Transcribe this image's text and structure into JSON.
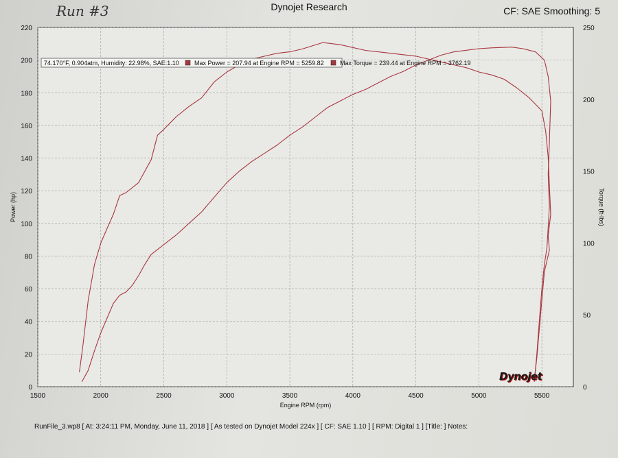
{
  "header": {
    "title": "Dynojet Research",
    "cf_label": "CF: SAE Smoothing: 5",
    "handwritten_note": "Run #3"
  },
  "footer": {
    "text": "RunFile_3.wp8 [ At: 3:24:11 PM, Monday, June 11, 2018 ] [ As tested on Dynojet Model 224x ] [ CF: SAE 1.10 ] [ RPM: Digital 1 ] [Title: ]  Notes:"
  },
  "brand": {
    "text": "Dynojet"
  },
  "chart_data": {
    "type": "line",
    "xlabel": "Engine RPM (rpm)",
    "ylabel": "Power (hp)",
    "y2label": "Torque (ft-lbs)",
    "xlim": [
      1500,
      5750
    ],
    "ylim": [
      0,
      220
    ],
    "y2lim": [
      0,
      250
    ],
    "x_ticks": [
      1500,
      2000,
      2500,
      3000,
      3500,
      4000,
      4500,
      5000,
      5500
    ],
    "y_ticks": [
      0,
      20,
      40,
      60,
      80,
      100,
      120,
      140,
      160,
      180,
      200,
      220
    ],
    "y2_ticks": [
      0,
      50,
      100,
      150,
      200,
      250
    ],
    "grid": true,
    "line_color": "#a8373f",
    "conditions": "74.170°F, 0.904atm, Humidity: 22.98%, SAE:1.10",
    "legend": [
      {
        "label": "Max Power = 207.94 at Engine RPM = 5259.82"
      },
      {
        "label": "Max Torque = 239.44 at Engine RPM = 3762.19"
      }
    ],
    "series": [
      {
        "axis": "left",
        "points": [
          [
            1850,
            3
          ],
          [
            1900,
            10
          ],
          [
            1950,
            22
          ],
          [
            2000,
            33
          ],
          [
            2050,
            42
          ],
          [
            2100,
            51
          ],
          [
            2150,
            56
          ],
          [
            2200,
            58
          ],
          [
            2250,
            62
          ],
          [
            2300,
            68
          ],
          [
            2350,
            75
          ],
          [
            2400,
            81
          ],
          [
            2450,
            84
          ],
          [
            2500,
            87
          ],
          [
            2600,
            93
          ],
          [
            2700,
            100
          ],
          [
            2800,
            107
          ],
          [
            2900,
            116
          ],
          [
            3000,
            125
          ],
          [
            3100,
            132
          ],
          [
            3200,
            138
          ],
          [
            3300,
            143
          ],
          [
            3400,
            148
          ],
          [
            3500,
            154
          ],
          [
            3600,
            159
          ],
          [
            3700,
            165
          ],
          [
            3800,
            171
          ],
          [
            3900,
            175
          ],
          [
            4000,
            179
          ],
          [
            4100,
            182
          ],
          [
            4200,
            186
          ],
          [
            4300,
            190
          ],
          [
            4400,
            193
          ],
          [
            4500,
            197
          ],
          [
            4600,
            200
          ],
          [
            4700,
            203
          ],
          [
            4800,
            205
          ],
          [
            4900,
            206
          ],
          [
            5000,
            207
          ],
          [
            5100,
            207.5
          ],
          [
            5260,
            207.94
          ],
          [
            5350,
            207
          ],
          [
            5450,
            205
          ],
          [
            5520,
            200
          ],
          [
            5550,
            190
          ],
          [
            5570,
            175
          ],
          [
            5560,
            150
          ],
          [
            5550,
            130
          ],
          [
            5560,
            110
          ],
          [
            5540,
            85
          ],
          [
            5520,
            75
          ],
          [
            5500,
            60
          ],
          [
            5480,
            40
          ],
          [
            5460,
            20
          ],
          [
            5440,
            3
          ]
        ]
      },
      {
        "axis": "right",
        "points": [
          [
            1830,
            10
          ],
          [
            1860,
            30
          ],
          [
            1900,
            60
          ],
          [
            1950,
            85
          ],
          [
            2000,
            100
          ],
          [
            2050,
            110
          ],
          [
            2100,
            120
          ],
          [
            2150,
            133
          ],
          [
            2200,
            135
          ],
          [
            2300,
            142
          ],
          [
            2400,
            158
          ],
          [
            2450,
            175
          ],
          [
            2500,
            179
          ],
          [
            2600,
            188
          ],
          [
            2700,
            195
          ],
          [
            2800,
            201
          ],
          [
            2900,
            212
          ],
          [
            3000,
            219
          ],
          [
            3100,
            224
          ],
          [
            3200,
            228
          ],
          [
            3300,
            230
          ],
          [
            3400,
            232
          ],
          [
            3500,
            233
          ],
          [
            3600,
            235
          ],
          [
            3762,
            239.44
          ],
          [
            3900,
            238
          ],
          [
            4000,
            236
          ],
          [
            4100,
            234
          ],
          [
            4200,
            233
          ],
          [
            4300,
            232
          ],
          [
            4400,
            231
          ],
          [
            4500,
            230
          ],
          [
            4600,
            228
          ],
          [
            4700,
            226
          ],
          [
            4800,
            224
          ],
          [
            4900,
            222
          ],
          [
            5000,
            219
          ],
          [
            5100,
            217
          ],
          [
            5200,
            214
          ],
          [
            5300,
            208
          ],
          [
            5400,
            201
          ],
          [
            5500,
            192
          ],
          [
            5530,
            178
          ],
          [
            5550,
            160
          ],
          [
            5560,
            140
          ],
          [
            5570,
            120
          ],
          [
            5550,
            105
          ],
          [
            5560,
            95
          ],
          [
            5520,
            80
          ],
          [
            5500,
            60
          ],
          [
            5480,
            40
          ],
          [
            5460,
            20
          ],
          [
            5440,
            5
          ]
        ]
      }
    ]
  }
}
